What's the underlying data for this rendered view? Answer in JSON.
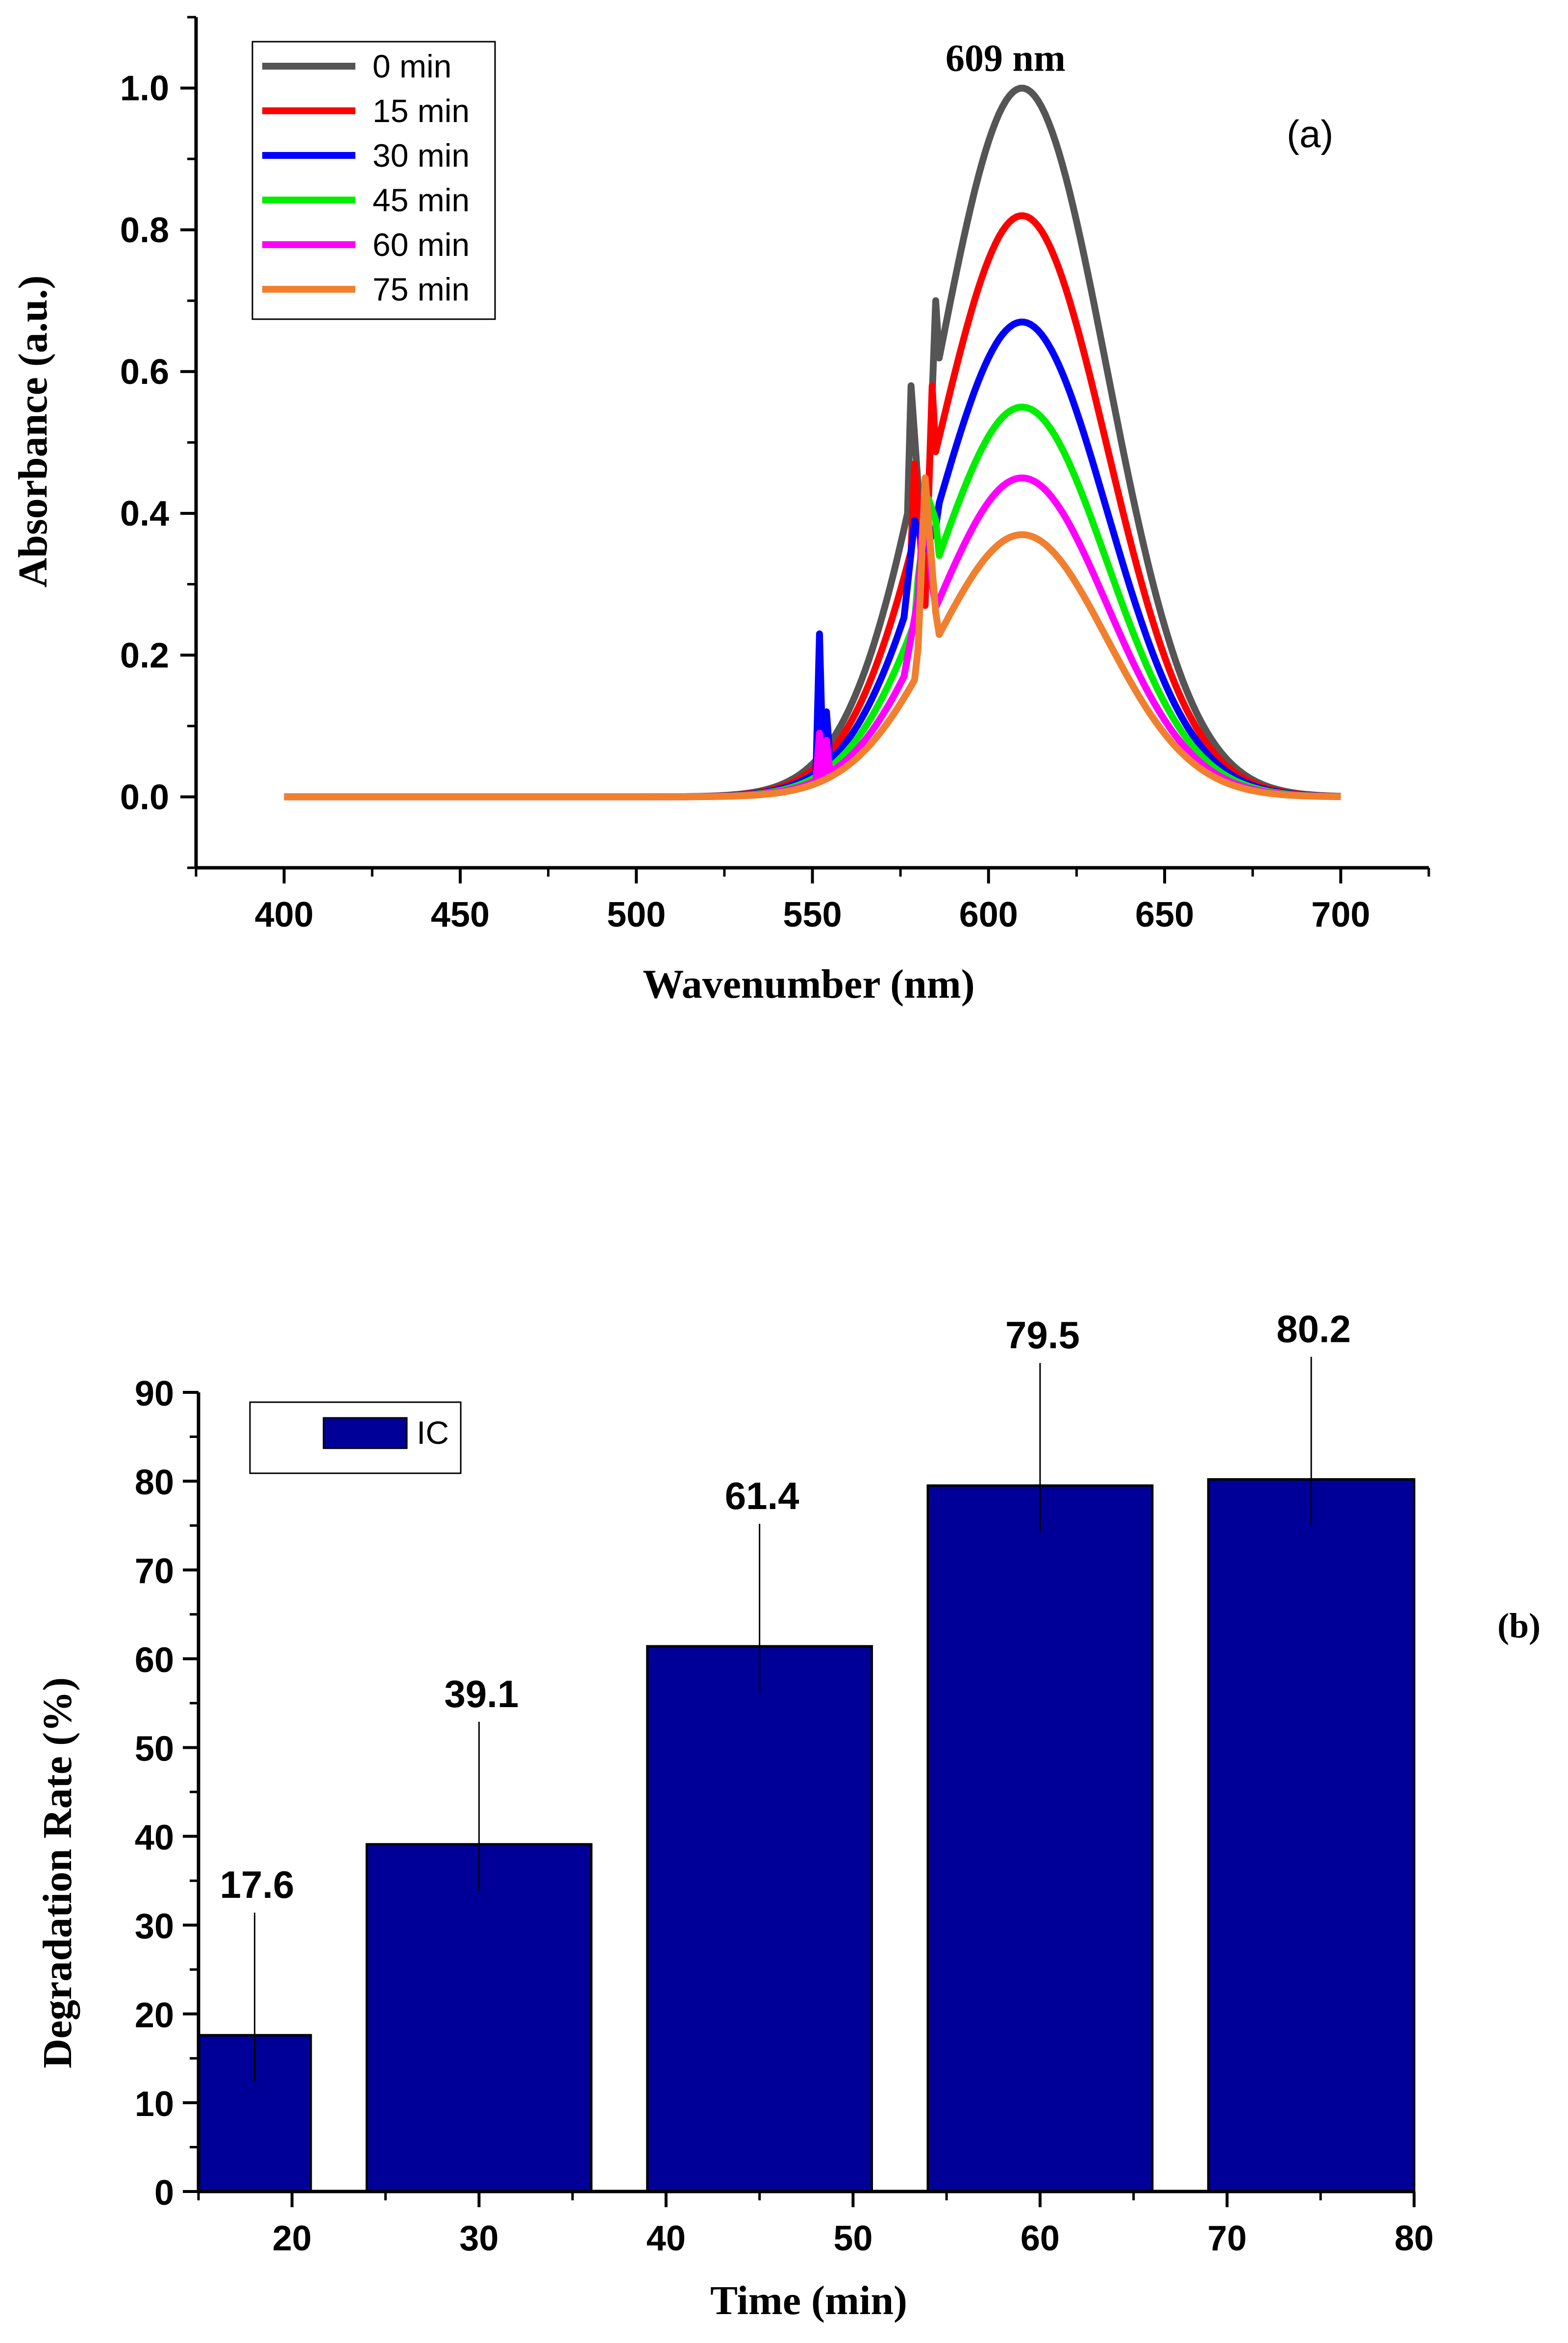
{
  "chart_data": [
    {
      "type": "line",
      "panel_label": "(a)",
      "xlabel": "Wavenumber (nm)",
      "ylabel": "Absorbance (a.u.)",
      "xlim": [
        375,
        725
      ],
      "ylim": [
        -0.1,
        1.1
      ],
      "xticks": [
        "400",
        "450",
        "500",
        "550",
        "600",
        "650",
        "700"
      ],
      "yticks": [
        "0.0",
        "0.2",
        "0.4",
        "0.6",
        "0.8",
        "1.0"
      ],
      "annotation": "609 nm",
      "annotation_x": 609,
      "annotation_y": 1.0,
      "legend_position": "top-left",
      "grid": false,
      "series": [
        {
          "name": "0 min",
          "color": "#555555",
          "peak": 1.0,
          "artifact": [
            [
              578,
              0.58
            ],
            [
              582,
              0.3
            ],
            [
              585,
              0.7
            ]
          ]
        },
        {
          "name": "15 min",
          "color": "#ff0000",
          "peak": 0.82,
          "artifact": [
            [
              579,
              0.47
            ],
            [
              582,
              0.27
            ],
            [
              584,
              0.58
            ]
          ]
        },
        {
          "name": "30 min",
          "color": "#0000ff",
          "peak": 0.67,
          "artifact": [
            [
              552,
              0.23
            ],
            [
              554,
              0.12
            ],
            [
              579,
              0.39
            ],
            [
              582,
              0.35
            ],
            [
              585,
              0.38
            ]
          ]
        },
        {
          "name": "45 min",
          "color": "#00ee00",
          "peak": 0.55,
          "artifact": [
            [
              580,
              0.31
            ],
            [
              583,
              0.42
            ],
            [
              585,
              0.39
            ]
          ]
        },
        {
          "name": "60 min",
          "color": "#ff00ff",
          "peak": 0.45,
          "artifact": [
            [
              552,
              0.09
            ],
            [
              554,
              0.08
            ],
            [
              580,
              0.28
            ],
            [
              582,
              0.44
            ],
            [
              584,
              0.3
            ]
          ]
        },
        {
          "name": "75 min",
          "color": "#f08030",
          "peak": 0.37,
          "artifact": [
            [
              580,
              0.21
            ],
            [
              582,
              0.45
            ],
            [
              585,
              0.26
            ]
          ]
        }
      ]
    },
    {
      "type": "bar",
      "panel_label": "(b)",
      "xlabel": "Time (min)",
      "ylabel": "Degradation Rate (%)",
      "xlim": [
        15,
        80
      ],
      "ylim": [
        0,
        90
      ],
      "xticks": [
        "20",
        "30",
        "40",
        "50",
        "60",
        "70",
        "80"
      ],
      "yticks": [
        "0",
        "10",
        "20",
        "30",
        "40",
        "50",
        "60",
        "70",
        "80",
        "90"
      ],
      "legend_position": "top-left",
      "grid": false,
      "series": [
        {
          "name": "IC",
          "color": "#000099",
          "bars": [
            {
              "x_from": 15,
              "x_to": 21,
              "value": 17.6,
              "label": "17.6"
            },
            {
              "x_from": 24,
              "x_to": 36,
              "value": 39.1,
              "label": "39.1"
            },
            {
              "x_from": 39,
              "x_to": 51,
              "value": 61.4,
              "label": "61.4"
            },
            {
              "x_from": 54,
              "x_to": 66,
              "value": 79.5,
              "label": "79.5"
            },
            {
              "x_from": 69,
              "x_to": 80,
              "value": 80.2,
              "label": "80.2"
            }
          ]
        }
      ]
    }
  ]
}
